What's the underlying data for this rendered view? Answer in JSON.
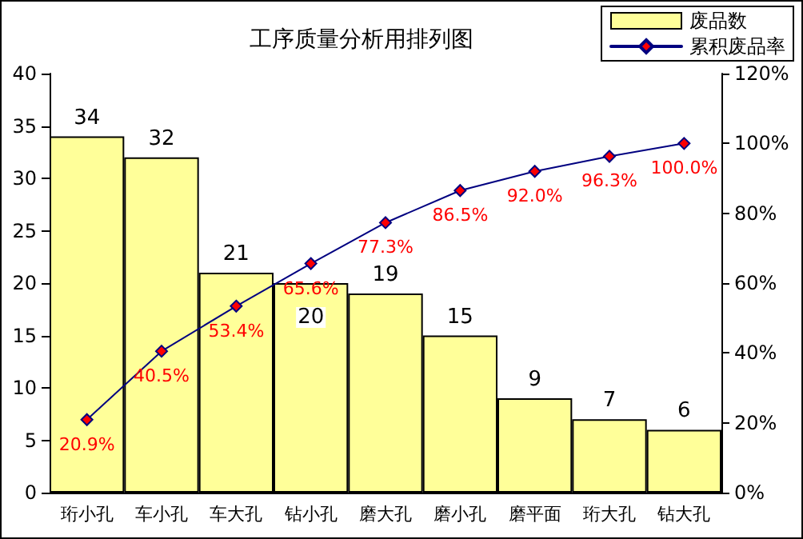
{
  "chart_data": {
    "type": "bar",
    "title": "工序质量分析用排列图",
    "categories": [
      "珩小孔",
      "车小孔",
      "车大孔",
      "钻小孔",
      "磨大孔",
      "磨小孔",
      "磨平面",
      "珩大孔",
      "钻大孔"
    ],
    "series": [
      {
        "name": "废品数",
        "color": "#ffff99",
        "values": [
          34,
          32,
          21,
          20,
          19,
          15,
          9,
          7,
          6
        ],
        "data_labels": true
      },
      {
        "name": "累积废品率",
        "type": "line",
        "axis": "y2",
        "color": "#000080",
        "marker": "diamond",
        "values": [
          20.9,
          40.5,
          53.4,
          65.6,
          77.3,
          86.5,
          92.0,
          96.3,
          100.0
        ],
        "value_labels": [
          "20.9%",
          "40.5%",
          "53.4%",
          "65.6%",
          "77.3%",
          "86.5%",
          "92.0%",
          "96.3%",
          "100.0%"
        ]
      }
    ],
    "ylim": [
      0,
      40
    ],
    "yticks": [
      0,
      5,
      10,
      15,
      20,
      25,
      30,
      35,
      40
    ],
    "y2lim": [
      0,
      120
    ],
    "y2ticks": [
      {
        "value": 0,
        "label": "0%"
      },
      {
        "value": 20,
        "label": "20%"
      },
      {
        "value": 40,
        "label": "40%"
      },
      {
        "value": 60,
        "label": "60%"
      },
      {
        "value": 80,
        "label": "80%"
      },
      {
        "value": 100,
        "label": "100%"
      },
      {
        "value": 120,
        "label": "120%"
      }
    ],
    "grid": false,
    "legend": "top right"
  }
}
